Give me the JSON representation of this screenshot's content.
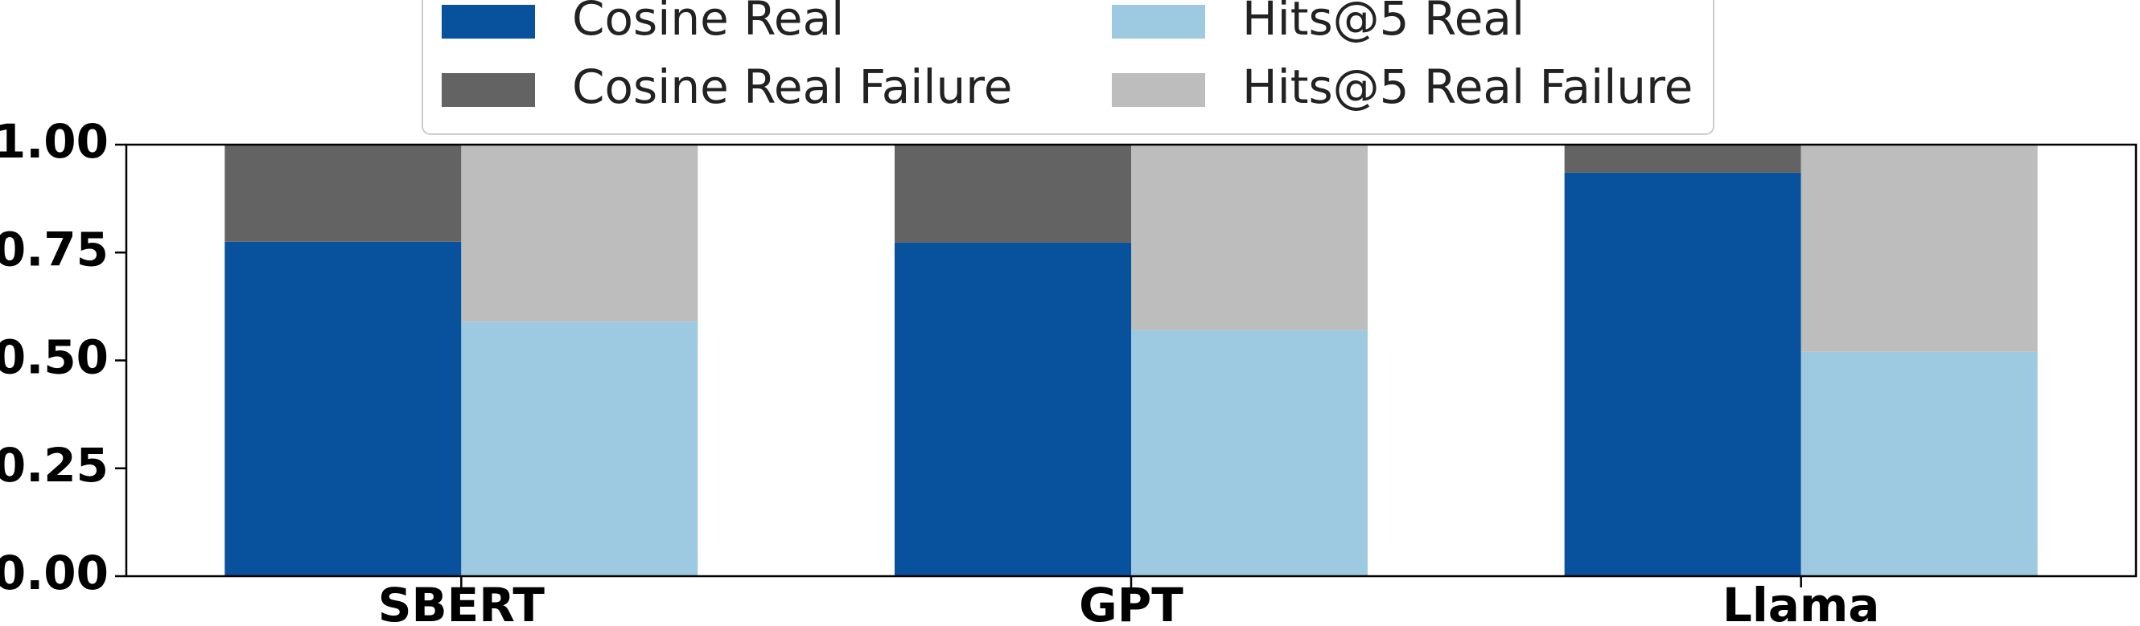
{
  "chart_data": {
    "type": "bar",
    "stacked": true,
    "categories": [
      "SBERT",
      "GPT",
      "Llama"
    ],
    "series": [
      {
        "name": "Cosine Real",
        "values": [
          0.775,
          0.773,
          0.935
        ],
        "color": "#08519c",
        "group": "Cosine"
      },
      {
        "name": "Cosine Real Failure",
        "values": [
          0.225,
          0.227,
          0.065
        ],
        "color": "#636363",
        "group": "Cosine"
      },
      {
        "name": "Hits@5 Real",
        "values": [
          0.59,
          0.57,
          0.52
        ],
        "color": "#9ecae1",
        "group": "Hits@5"
      },
      {
        "name": "Hits@5 Real Failure",
        "values": [
          0.41,
          0.43,
          0.48
        ],
        "color": "#bdbdbd",
        "group": "Hits@5"
      }
    ],
    "y_ticks": [
      "0.00",
      "0.25",
      "0.50",
      "0.75",
      "1.00"
    ],
    "ylim": [
      0,
      1
    ],
    "title": "",
    "xlabel": "",
    "ylabel": "",
    "grid": false,
    "legend_position": "top-center"
  }
}
